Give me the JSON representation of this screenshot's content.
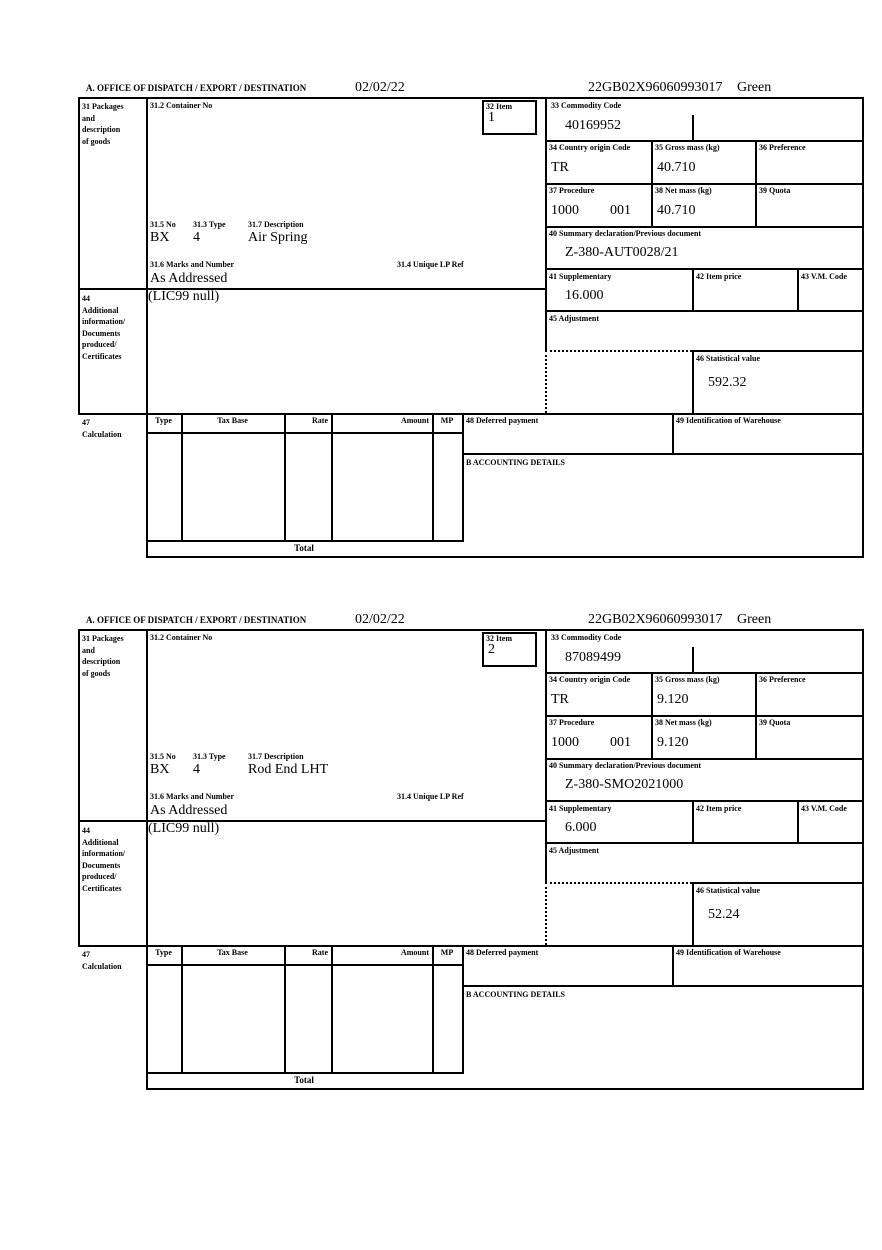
{
  "doc": {
    "header": {
      "office_label": "A. OFFICE OF DISPATCH / EXPORT / DESTINATION"
    },
    "labels": {
      "box31_lines": [
        "31 Packages",
        "and",
        "description",
        "of goods"
      ],
      "box31_2": "31.2 Container No",
      "box31_5": "31.5 No",
      "box31_3": "31.3 Type",
      "box31_7": "31.7 Description",
      "box31_6": "31.6 Marks and Number",
      "box31_4": "31.4 Unique LP Ref",
      "box32": "32 Item",
      "box33": "33 Commodity Code",
      "box34": "34 Country origin Code",
      "box35": "35 Gross mass (kg)",
      "box36": "36 Preference",
      "box37": "37 Procedure",
      "box38": "38 Net mass (kg)",
      "box39": "39 Quota",
      "box40": "40 Summary declaration/Previous document",
      "box41": "41 Supplementary",
      "box42": "42 Item price",
      "box43": "43 V.M. Code",
      "box44_lines": [
        "44",
        "Additional",
        "information/",
        "Documents",
        "produced/",
        "Certificates"
      ],
      "box45": "45 Adjustment",
      "box46": "46 Statistical value",
      "box47_lines": [
        "47",
        "Calculation"
      ],
      "box48": "48 Deferred payment",
      "box49": "49 Identification of Warehouse",
      "boxB": "B ACCOUNTING DETAILS",
      "calc_type": "Type",
      "calc_tax_base": "Tax Base",
      "calc_rate": "Rate",
      "calc_amount": "Amount",
      "calc_mp": "MP",
      "calc_total": "Total"
    },
    "ink_color": "#000000",
    "paper_color": "#ffffff"
  },
  "items": [
    {
      "date": "02/02/22",
      "mrn": "22GB02X96060993017",
      "status": "Green",
      "item_no": "1",
      "commodity_code": "40169952",
      "origin_country": "TR",
      "gross_mass": "40.710",
      "procedure": "1000",
      "procedure_2": "001",
      "net_mass": "40.710",
      "previous_document": "Z-380-AUT0028/21",
      "supplementary": "16.000",
      "statistical_value": "592.32",
      "package_no": "BX",
      "package_type": "4",
      "description": "Air Spring",
      "marks_and_number": "As Addressed",
      "additional_information": "(LIC99 null)"
    },
    {
      "date": "02/02/22",
      "mrn": "22GB02X96060993017",
      "status": "Green",
      "item_no": "2",
      "commodity_code": "87089499",
      "origin_country": "TR",
      "gross_mass": "9.120",
      "procedure": "1000",
      "procedure_2": "001",
      "net_mass": "9.120",
      "previous_document": "Z-380-SMO2021000",
      "supplementary": "6.000",
      "statistical_value": "52.24",
      "package_no": "BX",
      "package_type": "4",
      "description": "Rod End LHT",
      "marks_and_number": "As Addressed",
      "additional_information": "(LIC99 null)"
    }
  ]
}
